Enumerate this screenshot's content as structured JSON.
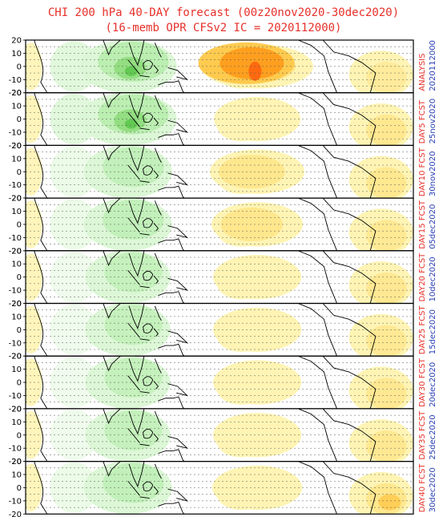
{
  "title": {
    "line1": "CHI 200 hPa 40-DAY forecast (00z20nov2020-30dec2020)",
    "line2": "(16-memb OPR CFSv2 IC = 2020112000)"
  },
  "chart_data": {
    "type": "heatmap",
    "variable": "CHI 200 hPa",
    "y_ticks": [
      20,
      10,
      0,
      -10,
      -20
    ],
    "ylim": [
      -20,
      20
    ],
    "xlim": [
      0,
      360
    ],
    "grid": true,
    "colors": {
      "green_light": "#dcf7d6",
      "green_mid": "#b4ecaa",
      "green_dark": "#8fdc7c",
      "green_deep": "#5ec64e",
      "yellow_light": "#fff4b4",
      "yellow_mid": "#ffe58a",
      "orange_light": "#ffc84a",
      "orange_mid": "#ff9c1c",
      "orange_deep": "#ff6a10",
      "coast": "#000000"
    },
    "panels": [
      {
        "label": "ANALYSIS",
        "date": "2020112000",
        "green": 0.8,
        "orange": 1.0,
        "atl": 0.2
      },
      {
        "label": "DAY5 FCST",
        "date": "25nov2020",
        "green": 0.8,
        "orange": 0.2,
        "atl": 0.45
      },
      {
        "label": "DAY10 FCST",
        "date": "30nov2020",
        "green": 0.5,
        "orange": 0.45,
        "atl": 0.45
      },
      {
        "label": "DAY15 FCST",
        "date": "05dec2020",
        "green": 0.5,
        "orange": 0.35,
        "atl": 0.35
      },
      {
        "label": "DAY20 FCST",
        "date": "10dec2020",
        "green": 0.4,
        "orange": 0.25,
        "atl": 0.4
      },
      {
        "label": "DAY25 FCST",
        "date": "15dec2020",
        "green": 0.4,
        "orange": 0.25,
        "atl": 0.35
      },
      {
        "label": "DAY30 FCST",
        "date": "20dec2020",
        "green": 0.4,
        "orange": 0.25,
        "atl": 0.4
      },
      {
        "label": "DAY35 FCST",
        "date": "25dec2020",
        "green": 0.4,
        "orange": 0.25,
        "atl": 0.4
      },
      {
        "label": "DAY40 FCST",
        "date": "30dec2020",
        "green": 0.5,
        "orange": 0.3,
        "atl": 0.5
      }
    ]
  }
}
